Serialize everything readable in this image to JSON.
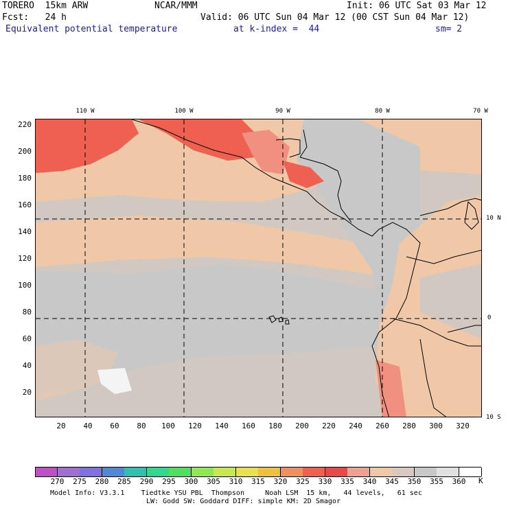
{
  "header": {
    "model": "TORERO  15km ARW",
    "center": "NCAR/MMM",
    "init": "Init: 06 UTC Sat 03 Mar 12",
    "fcst": "Fcst:   24 h",
    "valid": "Valid: 06 UTC Sun 04 Mar 12 (00 CST Sun 04 Mar 12)",
    "field": "Equivalent potential temperature",
    "level": "at k-index =  44",
    "smooth": "sm= 2"
  },
  "axes": {
    "y_ticks": [
      "220",
      "200",
      "180",
      "160",
      "140",
      "120",
      "100",
      "80",
      "60",
      "40",
      "20"
    ],
    "x_ticks": [
      "20",
      "40",
      "60",
      "80",
      "100",
      "120",
      "140",
      "160",
      "180",
      "200",
      "220",
      "240",
      "260",
      "280",
      "300",
      "320"
    ],
    "lon_labels": [
      "110 W",
      "100 W",
      "90 W",
      "80 W",
      "70 W"
    ],
    "lat_labels": [
      "10 N",
      "0",
      "10 S"
    ]
  },
  "colorbar": {
    "unit": "K",
    "labels": [
      "270",
      "275",
      "280",
      "285",
      "290",
      "295",
      "300",
      "305",
      "310",
      "315",
      "320",
      "325",
      "330",
      "335",
      "340",
      "345",
      "350",
      "355",
      "360"
    ],
    "colors": [
      "#c050c8",
      "#a070d0",
      "#8070e0",
      "#5088d8",
      "#30c0b0",
      "#30d890",
      "#50e060",
      "#90e850",
      "#c8e850",
      "#e8e050",
      "#f0c040",
      "#f09060",
      "#f06050",
      "#e84848",
      "#f0a090",
      "#f0c8a8",
      "#d8c8c0",
      "#c8c8c8",
      "#e0e0e0",
      "#ffffff"
    ]
  },
  "footer": {
    "line1": "Model Info: V3.3.1    Tiedtke YSU PBL  Thompson     Noah LSM  15 km,   44 levels,   61 sec",
    "line2": "LW: Godd SW: Goddard DIFF: simple KM: 2D Smagor"
  }
}
